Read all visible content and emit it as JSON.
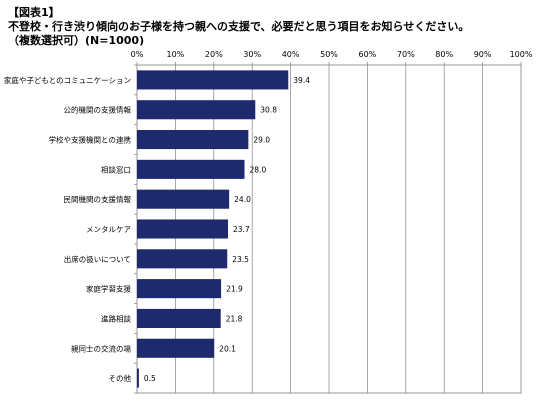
{
  "header": {
    "figure_label": "【図表1】",
    "question": "不登校・行き渋り傾向のお子様を持つ親への支援で、必要だと思う項目をお知らせください。",
    "note": "（複数選択可）(N=1000)"
  },
  "chart_data": {
    "type": "bar",
    "orientation": "horizontal",
    "categories": [
      "家庭や子どもとのコミュニケーション",
      "公的機関の支援情報",
      "学校や支援機関との連携",
      "相談窓口",
      "民間機関の支援情報",
      "メンタルケア",
      "出席の扱いについて",
      "家庭学習支援",
      "進路相談",
      "親同士の交流の場",
      "その他"
    ],
    "values": [
      39.4,
      30.8,
      29.0,
      28.0,
      24.0,
      23.7,
      23.5,
      21.9,
      21.8,
      20.1,
      0.5
    ],
    "data_labels": [
      "39.4",
      "30.8",
      "29.0",
      "28.0",
      "24.0",
      "23.7",
      "23.5",
      "21.9",
      "21.8",
      "20.1",
      "0.5"
    ],
    "x_ticks": [
      "0%",
      "10%",
      "20%",
      "30%",
      "40%",
      "50%",
      "60%",
      "70%",
      "80%",
      "90%",
      "100%"
    ],
    "xlim": [
      0,
      100
    ],
    "x_axis_position": "top",
    "grid": true,
    "bar_color": "#1f2a6e"
  }
}
